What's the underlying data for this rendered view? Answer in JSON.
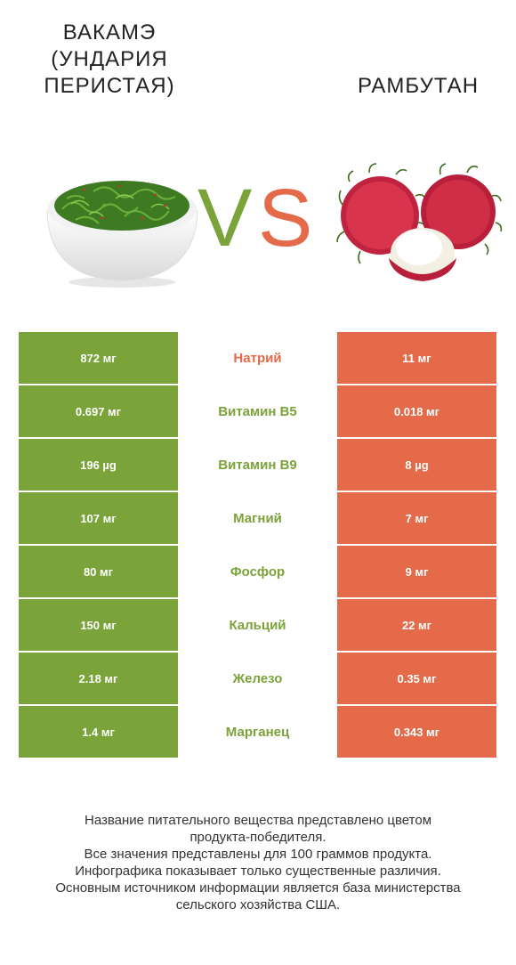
{
  "header": {
    "left_title": "Вакамэ (Ундария перистая)",
    "right_title": "Рамбутан",
    "vs_v": "V",
    "vs_s": "S"
  },
  "colors": {
    "left": "#7aa33a",
    "right": "#e46a49"
  },
  "rows": [
    {
      "left": "872 мг",
      "name": "Натрий",
      "right": "11 мг",
      "winner": "right"
    },
    {
      "left": "0.697 мг",
      "name": "Витамин B5",
      "right": "0.018 мг",
      "winner": "left"
    },
    {
      "left": "196 µg",
      "name": "Витамин B9",
      "right": "8 µg",
      "winner": "left"
    },
    {
      "left": "107 мг",
      "name": "Магний",
      "right": "7 мг",
      "winner": "left"
    },
    {
      "left": "80 мг",
      "name": "Фосфор",
      "right": "9 мг",
      "winner": "left"
    },
    {
      "left": "150 мг",
      "name": "Кальций",
      "right": "22 мг",
      "winner": "left"
    },
    {
      "left": "2.18 мг",
      "name": "Железо",
      "right": "0.35 мг",
      "winner": "left"
    },
    {
      "left": "1.4 мг",
      "name": "Марганец",
      "right": "0.343 мг",
      "winner": "left"
    }
  ],
  "footer": {
    "line1": "Название питательного вещества представлено цветом",
    "line2": "продукта-победителя.",
    "line3": "Все значения представлены для 100 граммов продукта.",
    "line4": "Инфографика показывает только существенные различия.",
    "line5": "Основным источником информации является база министерства",
    "line6": "сельского хозяйства США."
  }
}
